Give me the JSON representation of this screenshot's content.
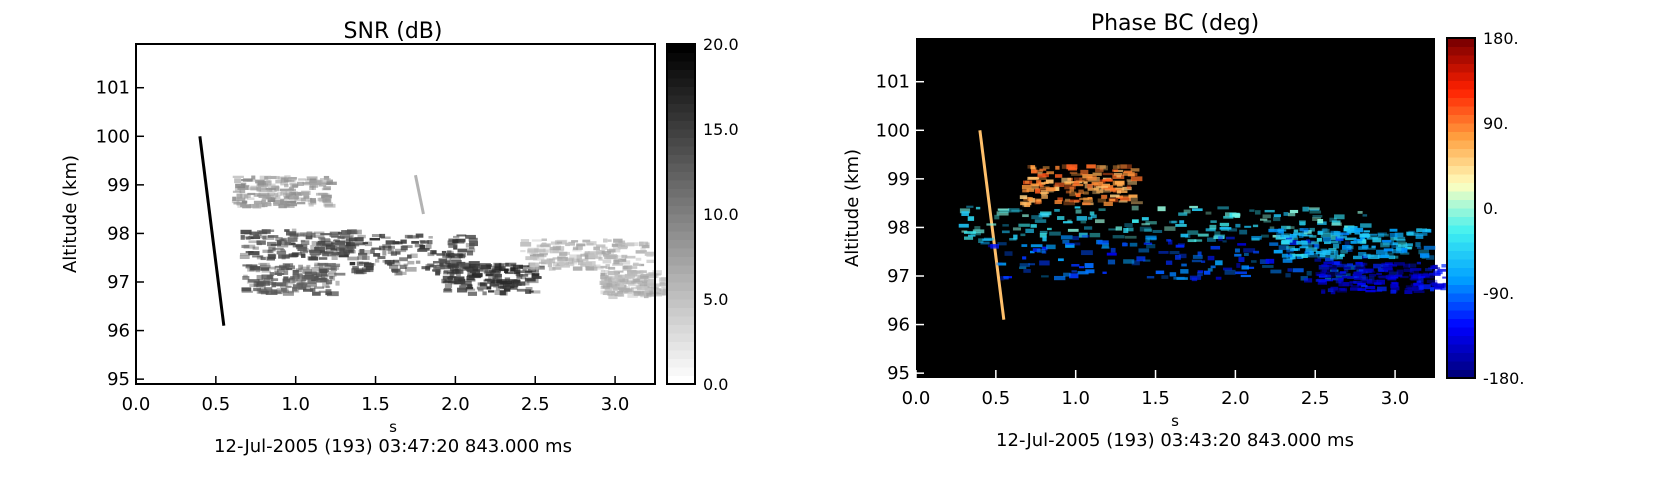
{
  "chart_data": [
    {
      "type": "heatmap",
      "title": "SNR (dB)",
      "xlabel": "s",
      "ylabel": "Altitude (km)",
      "xlim": [
        0.0,
        3.25
      ],
      "ylim": [
        94.9,
        101.9
      ],
      "x_ticks": [
        "0.0",
        "0.5",
        "1.0",
        "1.5",
        "2.0",
        "2.5",
        "3.0"
      ],
      "y_ticks": [
        "95",
        "96",
        "97",
        "98",
        "99",
        "100",
        "101"
      ],
      "colorbar": {
        "range": [
          0.0,
          20.0
        ],
        "ticks": [
          "0.0",
          "5.0",
          "10.0",
          "15.0",
          "20.0"
        ],
        "colors": [
          "#ffffff",
          "#000000"
        ]
      },
      "footer": "12-Jul-2005 (193) 03:47:20 843.000 ms",
      "features": [
        {
          "kind": "streak",
          "x0": 0.4,
          "y0": 100.0,
          "x1": 0.55,
          "y1": 96.1,
          "value": 20
        },
        {
          "kind": "streak",
          "x0": 1.75,
          "y0": 99.2,
          "x1": 1.8,
          "y1": 98.4,
          "value": 6
        },
        {
          "kind": "blob",
          "x": 1.0,
          "y": 97.8,
          "w": 0.35,
          "h": 0.3,
          "value": 14
        },
        {
          "kind": "blob",
          "x": 1.7,
          "y": 97.6,
          "w": 0.4,
          "h": 0.4,
          "value": 15
        },
        {
          "kind": "blob",
          "x": 2.2,
          "y": 97.1,
          "w": 0.3,
          "h": 0.3,
          "value": 16
        },
        {
          "kind": "blob",
          "x": 0.95,
          "y": 97.1,
          "w": 0.3,
          "h": 0.3,
          "value": 13
        },
        {
          "kind": "blob",
          "x": 0.9,
          "y": 98.9,
          "w": 0.3,
          "h": 0.3,
          "value": 8
        },
        {
          "kind": "blob",
          "x": 2.8,
          "y": 97.6,
          "w": 0.4,
          "h": 0.3,
          "value": 6
        },
        {
          "kind": "blob",
          "x": 3.1,
          "y": 97.0,
          "w": 0.2,
          "h": 0.25,
          "value": 6
        }
      ]
    },
    {
      "type": "heatmap",
      "title": "Phase BC (deg)",
      "xlabel": "s",
      "ylabel": "Altitude (km)",
      "xlim": [
        0.0,
        3.25
      ],
      "ylim": [
        94.9,
        101.9
      ],
      "x_ticks": [
        "0.0",
        "0.5",
        "1.0",
        "1.5",
        "2.0",
        "2.5",
        "3.0"
      ],
      "y_ticks": [
        "95",
        "96",
        "97",
        "98",
        "99",
        "100",
        "101"
      ],
      "colorbar": {
        "range": [
          -180,
          180
        ],
        "ticks": [
          "-180.",
          "-90.",
          "0.",
          "90.",
          "180."
        ],
        "colors": [
          "#00007f",
          "#0000ff",
          "#00a0ff",
          "#40f0f0",
          "#ffffc0",
          "#ffa040",
          "#ff2000",
          "#7f0000"
        ]
      },
      "background": "#000000",
      "footer": "12-Jul-2005 (193) 03:43:20 843.000 ms",
      "features": [
        {
          "kind": "streak",
          "x0": 0.4,
          "y0": 100.0,
          "x1": 0.55,
          "y1": 96.1,
          "value": 60
        },
        {
          "kind": "blob",
          "x": 1.0,
          "y": 98.9,
          "w": 0.35,
          "h": 0.4,
          "value": 80
        },
        {
          "kind": "blob",
          "x": 1.5,
          "y": 98.1,
          "w": 1.3,
          "h": 0.35,
          "value": -30
        },
        {
          "kind": "blob",
          "x": 1.6,
          "y": 97.4,
          "w": 1.2,
          "h": 0.45,
          "value": -100
        },
        {
          "kind": "blob",
          "x": 2.7,
          "y": 97.7,
          "w": 0.5,
          "h": 0.3,
          "value": -60
        },
        {
          "kind": "blob",
          "x": 2.9,
          "y": 97.0,
          "w": 0.4,
          "h": 0.3,
          "value": -140
        }
      ]
    }
  ]
}
